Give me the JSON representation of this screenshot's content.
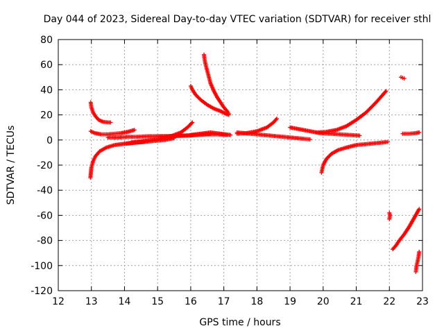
{
  "chart_data": {
    "type": "scatter",
    "title": "Day 044 of 2023, Sidereal Day-to-day VTEC variation (SDTVAR) for receiver sthl",
    "xlabel": "GPS time / hours",
    "ylabel": "SDTVAR / TECUs",
    "xlim": [
      12,
      23
    ],
    "ylim": [
      -120,
      80
    ],
    "xticks": [
      "12",
      "13",
      "14",
      "15",
      "16",
      "17",
      "18",
      "19",
      "20",
      "21",
      "22",
      "23"
    ],
    "yticks": [
      "-120",
      "-100",
      "-80",
      "-60",
      "-40",
      "-20",
      "0",
      "20",
      "40",
      "60",
      "80"
    ],
    "grid": true,
    "legend": "none",
    "marker": "plus",
    "color": "#ff0000",
    "series": [
      {
        "x": [
          12.98,
          13.0,
          13.05,
          13.12,
          13.22,
          13.35,
          13.5,
          13.58
        ],
        "y": [
          30,
          26,
          22,
          19,
          16,
          14.5,
          14,
          14
        ]
      },
      {
        "x": [
          12.98,
          13.1,
          13.3,
          13.5,
          13.7,
          13.9,
          14.1,
          14.3
        ],
        "y": [
          7,
          5.5,
          4.5,
          4.5,
          5,
          5.5,
          6.5,
          8
        ]
      },
      {
        "x": [
          12.97,
          13.0,
          13.05,
          13.12,
          13.25,
          13.45,
          13.7,
          14.0,
          14.3,
          14.6
        ],
        "y": [
          -30,
          -22,
          -17,
          -13,
          -9,
          -6,
          -4,
          -3,
          -2,
          -1.5
        ]
      },
      {
        "x": [
          13.5,
          13.8,
          14.1,
          14.4,
          14.7,
          15.0,
          15.3,
          15.6,
          15.9,
          16.2,
          16.5,
          16.8,
          17.1
        ],
        "y": [
          2,
          2,
          2.5,
          2.5,
          3,
          3,
          3,
          3.5,
          3.5,
          4,
          4.5,
          4.5,
          4
        ]
      },
      {
        "x": [
          14.2,
          14.5,
          14.8,
          15.1,
          15.4,
          15.7,
          15.9,
          16.05
        ],
        "y": [
          -2,
          -1,
          0,
          1,
          3,
          6,
          10,
          14
        ]
      },
      {
        "x": [
          14.0,
          14.4,
          14.8,
          15.2,
          15.5
        ],
        "y": [
          -3,
          -2,
          -1,
          0,
          1.5
        ]
      },
      {
        "x": [
          15.0,
          15.4,
          15.8,
          16.2,
          16.6
        ],
        "y": [
          3,
          3,
          3.5,
          4,
          5
        ]
      },
      {
        "x": [
          16.0,
          16.05,
          16.15,
          16.3,
          16.5,
          16.7,
          16.9,
          17.05,
          17.15
        ],
        "y": [
          43,
          40,
          36,
          32,
          28,
          25,
          23,
          21,
          20
        ]
      },
      {
        "x": [
          16.4,
          16.42,
          16.45,
          16.5,
          16.55,
          16.6,
          16.7,
          16.8,
          16.9,
          17.0,
          17.1,
          17.15
        ],
        "y": [
          68,
          64,
          60,
          55,
          50,
          45,
          39,
          34,
          30,
          26,
          23,
          21
        ]
      },
      {
        "x": [
          16.0,
          16.3,
          16.6,
          16.9,
          17.2
        ],
        "y": [
          4,
          5,
          6,
          5,
          4
        ]
      },
      {
        "x": [
          17.4,
          17.7,
          18.0,
          18.3,
          18.5,
          18.6
        ],
        "y": [
          5,
          5.5,
          7,
          10,
          14,
          17
        ]
      },
      {
        "x": [
          17.4,
          17.8,
          18.2,
          18.6,
          19.0,
          19.4,
          19.6
        ],
        "y": [
          6,
          5,
          4,
          3,
          2,
          1,
          0.5
        ]
      },
      {
        "x": [
          19.0,
          19.3,
          19.6,
          19.9,
          20.2,
          20.5,
          20.8,
          21.1
        ],
        "y": [
          10,
          8.5,
          7,
          5.5,
          5,
          4.5,
          4,
          3.5
        ]
      },
      {
        "x": [
          19.8,
          20.1,
          20.4,
          20.7,
          21.0,
          21.3,
          21.6,
          21.9
        ],
        "y": [
          6,
          6.5,
          8,
          11,
          16,
          22,
          30,
          39
        ]
      },
      {
        "x": [
          19.95,
          20.0,
          20.1,
          20.25,
          20.45,
          20.7,
          21.0,
          21.4,
          21.8,
          21.95
        ],
        "y": [
          -26,
          -20,
          -15,
          -11,
          -8,
          -6,
          -4,
          -3,
          -2,
          -1.5
        ]
      },
      {
        "x": [
          22.35,
          22.4,
          22.45
        ],
        "y": [
          50,
          49.5,
          49
        ]
      },
      {
        "x": [
          22.4,
          22.6,
          22.8,
          22.9
        ],
        "y": [
          5,
          5,
          5.5,
          6
        ]
      },
      {
        "x": [
          22.0,
          22.02,
          22.0
        ],
        "y": [
          -58,
          -60,
          -63
        ]
      },
      {
        "x": [
          22.1,
          22.2,
          22.3,
          22.45,
          22.6,
          22.75,
          22.9
        ],
        "y": [
          -87,
          -84,
          -80,
          -75,
          -69,
          -62,
          -55
        ]
      },
      {
        "x": [
          22.8,
          22.82,
          22.85,
          22.88,
          22.9
        ],
        "y": [
          -105,
          -100,
          -97,
          -93,
          -89
        ]
      }
    ]
  }
}
